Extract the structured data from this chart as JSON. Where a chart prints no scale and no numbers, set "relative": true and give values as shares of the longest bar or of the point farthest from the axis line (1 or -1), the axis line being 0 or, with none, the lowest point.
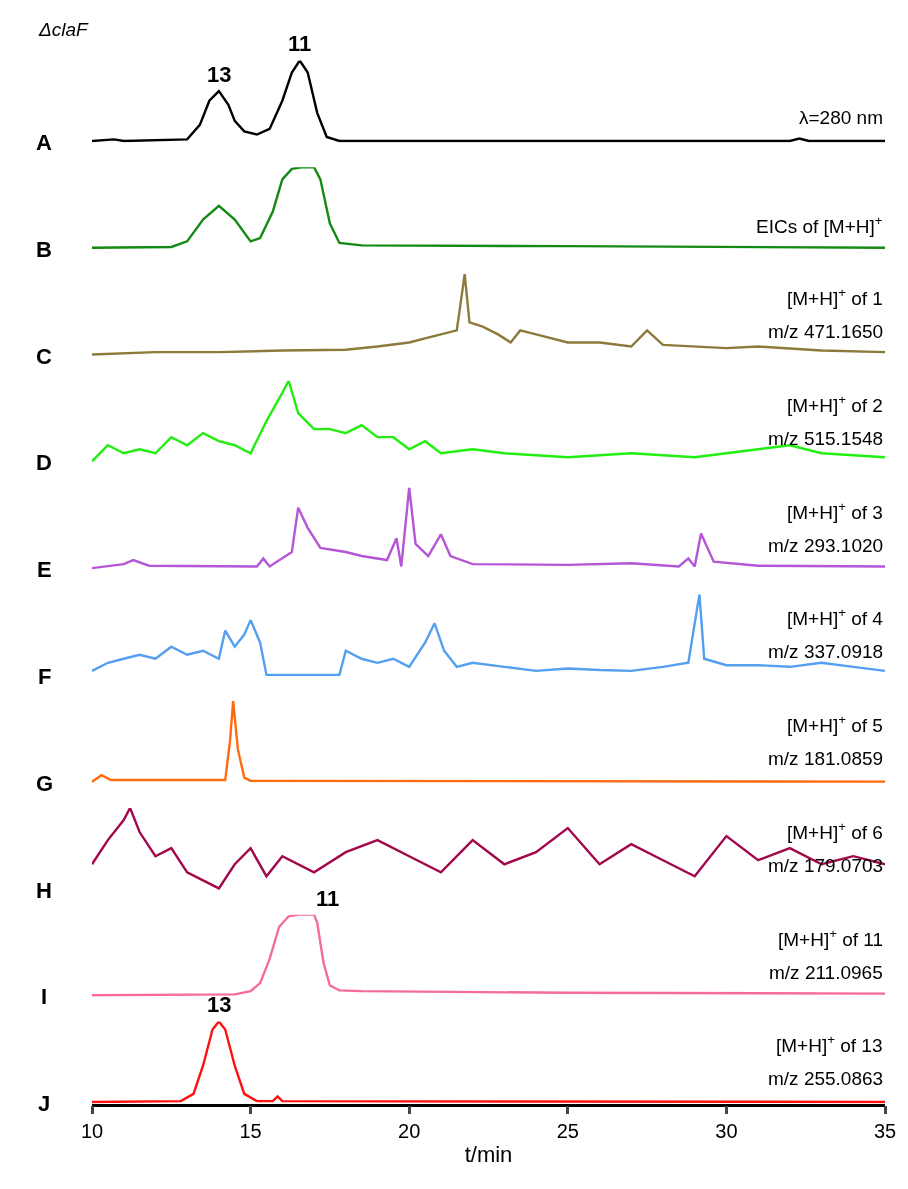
{
  "chart_data": [
    {
      "type": "line",
      "title": "ΔclaF",
      "ylabel": "A",
      "relative": true,
      "xlim": [
        10,
        35
      ],
      "tick_labels": false,
      "series": [
        {
          "color": "#000000",
          "x": [
            10,
            10.7,
            11,
            13,
            13.4,
            13.7,
            14.0,
            14.3,
            14.5,
            14.8,
            15.2,
            15.6,
            16.0,
            16.3,
            16.55,
            16.8,
            17.1,
            17.4,
            17.8,
            32.0,
            32.3,
            32.6,
            35
          ],
          "values": [
            0,
            0.02,
            0,
            0.02,
            0.2,
            0.5,
            0.62,
            0.45,
            0.25,
            0.12,
            0.08,
            0.15,
            0.5,
            0.85,
            1,
            0.85,
            0.35,
            0.05,
            0,
            0,
            0.03,
            0,
            0
          ]
        }
      ],
      "annotations": [
        {
          "text": "13",
          "x": 14.0,
          "y": 0.62
        },
        {
          "text": "11",
          "x": 16.55,
          "y": 1
        },
        "λ=280 nm"
      ]
    },
    {
      "type": "line",
      "ylabel": "B",
      "relative": true,
      "xlim": [
        10,
        35
      ],
      "tick_labels": false,
      "series": [
        {
          "color": "#138a13",
          "x": [
            10,
            12.5,
            13.0,
            13.5,
            14.0,
            14.5,
            15.0,
            15.3,
            15.7,
            16.0,
            16.3,
            16.6,
            17.0,
            17.2,
            17.5,
            17.8,
            18.5,
            25,
            35
          ],
          "values": [
            0,
            0.01,
            0.08,
            0.35,
            0.52,
            0.35,
            0.08,
            0.12,
            0.45,
            0.85,
            0.98,
            1,
            1,
            0.85,
            0.3,
            0.06,
            0.03,
            0.02,
            0
          ]
        }
      ],
      "annotations": [
        "EICs of [M+H]$^{+}$"
      ]
    },
    {
      "type": "line",
      "ylabel": "C",
      "relative": true,
      "xlim": [
        10,
        35
      ],
      "tick_labels": false,
      "series": [
        {
          "color": "#8b7a3a",
          "x": [
            10,
            12,
            14,
            16,
            18,
            19,
            20,
            20.5,
            21,
            21.5,
            21.75,
            21.9,
            22.3,
            22.8,
            23.2,
            23.5,
            24,
            25,
            26,
            27,
            27.5,
            28,
            30,
            31,
            33,
            35
          ],
          "values": [
            0,
            0.03,
            0.03,
            0.05,
            0.06,
            0.1,
            0.15,
            0.2,
            0.25,
            0.3,
            1,
            0.4,
            0.35,
            0.25,
            0.15,
            0.3,
            0.25,
            0.15,
            0.15,
            0.1,
            0.3,
            0.12,
            0.08,
            0.1,
            0.05,
            0.03
          ]
        }
      ],
      "annotations": [
        "[M+H]$^{+}$ of 1",
        "m/z 471.1650"
      ]
    },
    {
      "type": "line",
      "ylabel": "D",
      "relative": true,
      "xlim": [
        10,
        35
      ],
      "tick_labels": false,
      "series": [
        {
          "color": "#22ee11",
          "x": [
            10,
            10.5,
            11,
            11.5,
            12,
            12.5,
            13,
            13.5,
            14,
            14.5,
            15,
            15.5,
            16,
            16.2,
            16.5,
            17,
            17.5,
            18,
            18.5,
            19,
            19.5,
            20,
            20.5,
            21,
            22,
            23,
            25,
            27,
            29,
            31,
            32,
            33,
            35
          ],
          "values": [
            0,
            0.2,
            0.1,
            0.15,
            0.1,
            0.3,
            0.2,
            0.35,
            0.25,
            0.2,
            0.1,
            0.5,
            0.85,
            1,
            0.6,
            0.4,
            0.4,
            0.35,
            0.45,
            0.3,
            0.3,
            0.15,
            0.25,
            0.1,
            0.15,
            0.1,
            0.05,
            0.1,
            0.05,
            0.15,
            0.2,
            0.1,
            0.05
          ]
        }
      ],
      "annotations": [
        "[M+H]$^{+}$ of 2",
        "m/z 515.1548"
      ]
    },
    {
      "type": "line",
      "ylabel": "E",
      "relative": true,
      "xlim": [
        10,
        35
      ],
      "tick_labels": false,
      "series": [
        {
          "color": "#b556d6",
          "x": [
            10,
            11,
            11.3,
            11.8,
            15.2,
            15.4,
            15.6,
            16.3,
            16.5,
            16.8,
            17.2,
            18,
            18.5,
            19.3,
            19.6,
            19.75,
            20.0,
            20.2,
            20.6,
            21.0,
            21.3,
            22,
            25,
            27,
            28.5,
            28.8,
            29.0,
            29.2,
            29.6,
            31,
            35
          ],
          "values": [
            0,
            0.05,
            0.1,
            0.03,
            0.02,
            0.12,
            0.02,
            0.2,
            0.75,
            0.5,
            0.25,
            0.2,
            0.15,
            0.1,
            0.37,
            0.02,
            1,
            0.3,
            0.15,
            0.42,
            0.15,
            0.05,
            0.04,
            0.06,
            0.02,
            0.12,
            0.02,
            0.43,
            0.08,
            0.03,
            0.02
          ]
        }
      ],
      "annotations": [
        "[M+H]$^{+}$ of 3",
        "m/z 293.1020"
      ]
    },
    {
      "type": "line",
      "ylabel": "F",
      "relative": true,
      "xlim": [
        10,
        35
      ],
      "tick_labels": false,
      "series": [
        {
          "color": "#559ff0",
          "x": [
            10,
            10.5,
            11,
            11.5,
            12,
            12.5,
            13,
            13.5,
            14,
            14.2,
            14.5,
            14.8,
            15.0,
            15.3,
            15.5,
            17.8,
            18,
            18.5,
            19,
            19.5,
            20,
            20.5,
            20.8,
            21.1,
            21.5,
            22,
            23,
            24,
            25,
            26,
            27,
            28,
            28.8,
            29.15,
            29.3,
            30,
            31,
            32,
            33,
            34,
            35
          ],
          "values": [
            0.05,
            0.15,
            0.2,
            0.25,
            0.2,
            0.35,
            0.25,
            0.3,
            0.2,
            0.55,
            0.35,
            0.5,
            0.68,
            0.4,
            0,
            0,
            0.3,
            0.2,
            0.15,
            0.2,
            0.1,
            0.4,
            0.64,
            0.3,
            0.1,
            0.15,
            0.1,
            0.05,
            0.08,
            0.06,
            0.05,
            0.1,
            0.15,
            1,
            0.2,
            0.12,
            0.12,
            0.1,
            0.15,
            0.1,
            0.05
          ]
        }
      ],
      "annotations": [
        "[M+H]$^{+}$ of 4",
        "m/z 337.0918"
      ]
    },
    {
      "type": "line",
      "ylabel": "G",
      "relative": true,
      "xlim": [
        10,
        35
      ],
      "tick_labels": false,
      "series": [
        {
          "color": "#ff6a10",
          "x": [
            10,
            10.3,
            10.6,
            14.2,
            14.35,
            14.45,
            14.6,
            14.8,
            15,
            35
          ],
          "values": [
            0,
            0.08,
            0.02,
            0.02,
            0.5,
            1,
            0.4,
            0.05,
            0.01,
            0
          ]
        }
      ],
      "annotations": [
        "[M+H]$^{+}$ of 5",
        "m/z 181.0859"
      ]
    },
    {
      "type": "line",
      "ylabel": "H",
      "relative": true,
      "xlim": [
        10,
        35
      ],
      "tick_labels": false,
      "series": [
        {
          "color": "#a3064b",
          "x": [
            10,
            10.5,
            11,
            11.2,
            11.5,
            12,
            12.5,
            13,
            13.5,
            14,
            14.5,
            15,
            15.5,
            16,
            17,
            18,
            19,
            20,
            21,
            22,
            23,
            24,
            25,
            26,
            27,
            28,
            29,
            30,
            31,
            32,
            33,
            34,
            35
          ],
          "values": [
            0.3,
            0.6,
            0.85,
            1,
            0.7,
            0.4,
            0.5,
            0.2,
            0.1,
            0,
            0.3,
            0.5,
            0.15,
            0.4,
            0.2,
            0.45,
            0.6,
            0.4,
            0.2,
            0.6,
            0.3,
            0.45,
            0.75,
            0.3,
            0.55,
            0.35,
            0.15,
            0.65,
            0.35,
            0.5,
            0.3,
            0.4,
            0.3
          ]
        }
      ],
      "annotations": [
        "[M+H]$^{+}$ of 6",
        "m/z 179.0703"
      ]
    },
    {
      "type": "line",
      "ylabel": "I",
      "relative": true,
      "xlim": [
        10,
        35
      ],
      "tick_labels": false,
      "series": [
        {
          "color": "#f56b9b",
          "x": [
            10,
            14.5,
            15,
            15.3,
            15.6,
            15.9,
            16.2,
            16.5,
            17.0,
            17.1,
            17.3,
            17.5,
            17.8,
            18.5,
            25,
            35
          ],
          "values": [
            0,
            0.01,
            0.05,
            0.15,
            0.45,
            0.85,
            0.98,
            1,
            1,
            0.9,
            0.4,
            0.12,
            0.06,
            0.05,
            0.03,
            0.02
          ]
        }
      ],
      "annotations": [
        {
          "text": "11",
          "x": 17.0,
          "y": 1
        },
        "[M+H]$^{+}$ of 11",
        "m/z 211.0965"
      ]
    },
    {
      "type": "line",
      "ylabel": "J",
      "relative": true,
      "xlim": [
        10,
        35
      ],
      "xticks": [
        10,
        15,
        20,
        25,
        30,
        35
      ],
      "xlabel": "t/min",
      "tick_labels": "x",
      "series": [
        {
          "color": "#ff1010",
          "x": [
            10,
            12.8,
            13.2,
            13.5,
            13.8,
            14.0,
            14.2,
            14.5,
            14.8,
            15.2,
            15.7,
            15.85,
            16,
            35
          ],
          "values": [
            0,
            0.01,
            0.1,
            0.45,
            0.9,
            1,
            0.9,
            0.45,
            0.1,
            0.01,
            0.01,
            0.07,
            0.01,
            0
          ]
        }
      ],
      "annotations": [
        {
          "text": "13",
          "x": 14.0,
          "y": 1
        },
        "[M+H]$^{+}$ of 13",
        "m/z 255.0863"
      ]
    }
  ]
}
